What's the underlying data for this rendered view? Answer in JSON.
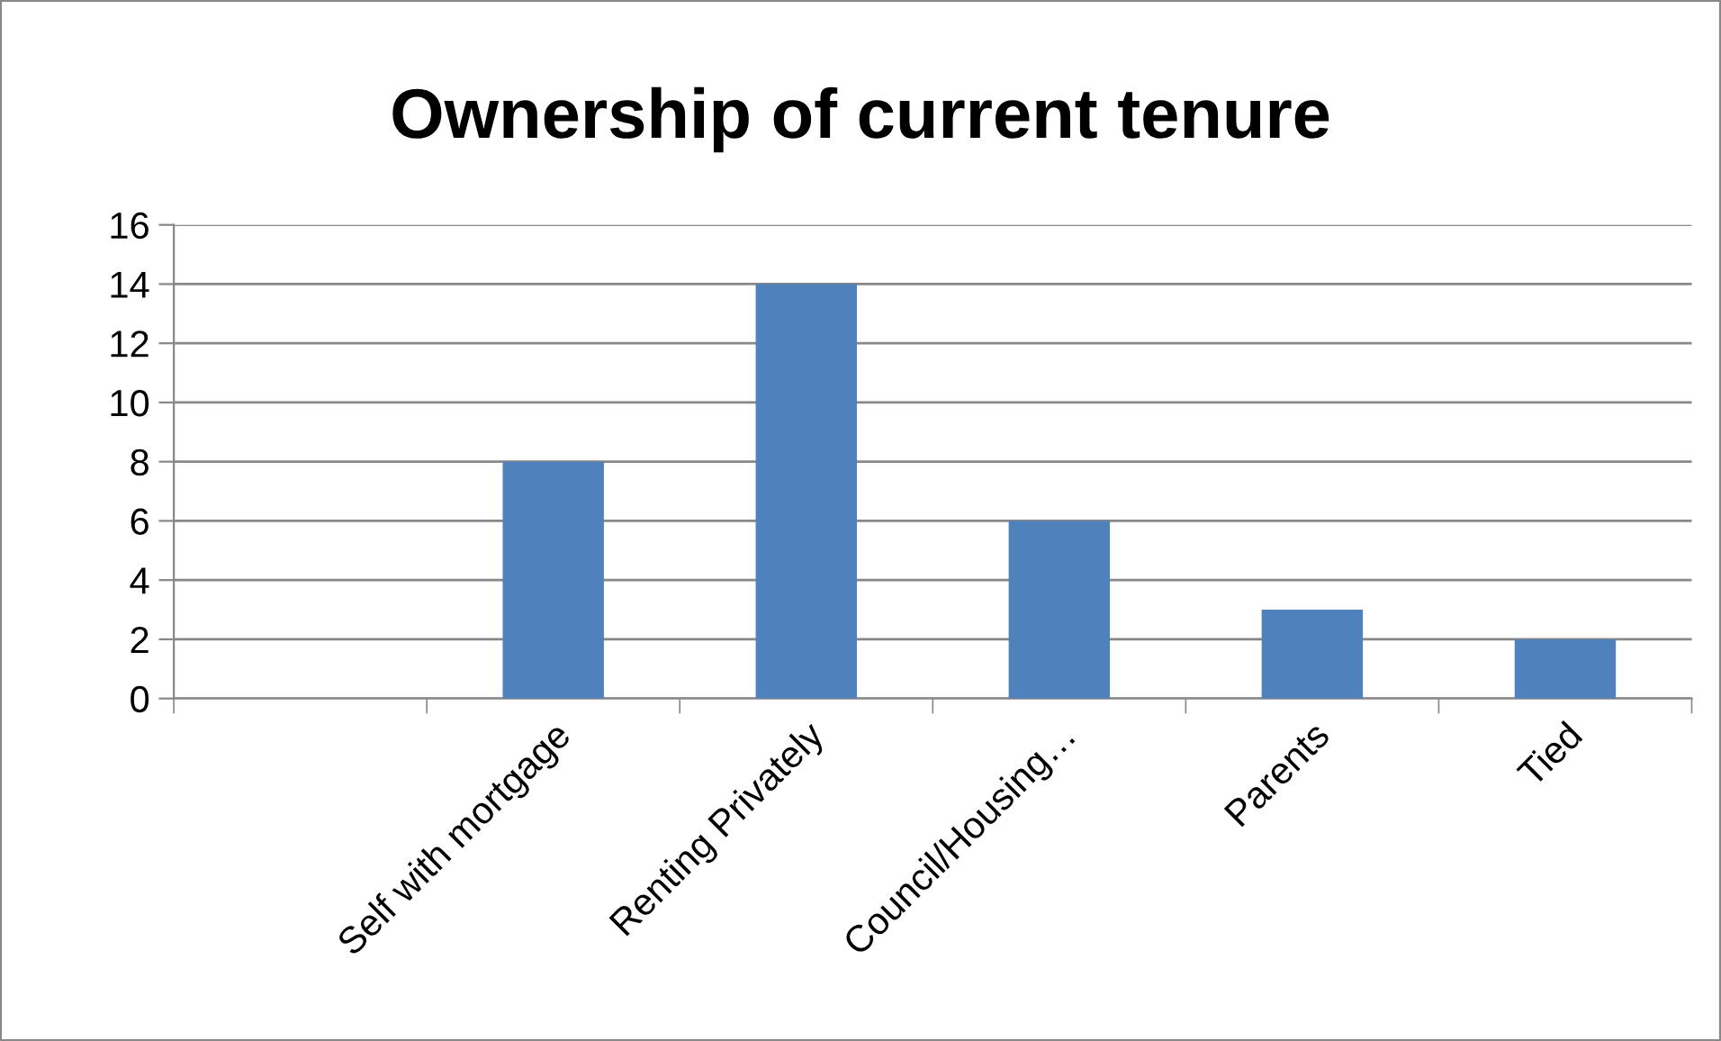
{
  "chart_data": {
    "type": "bar",
    "title": "Ownership of current tenure",
    "categories": [
      null,
      "Self with mortgage",
      "Renting Privately",
      "Council/Housing…",
      "Parents",
      "Tied"
    ],
    "values": [
      null,
      8,
      14,
      6,
      3,
      2
    ],
    "color": "#4f81bd",
    "ylim": [
      0,
      16
    ],
    "yticks": [
      0,
      2,
      4,
      6,
      8,
      10,
      12,
      14,
      16
    ],
    "grid": "y",
    "legend": false
  }
}
